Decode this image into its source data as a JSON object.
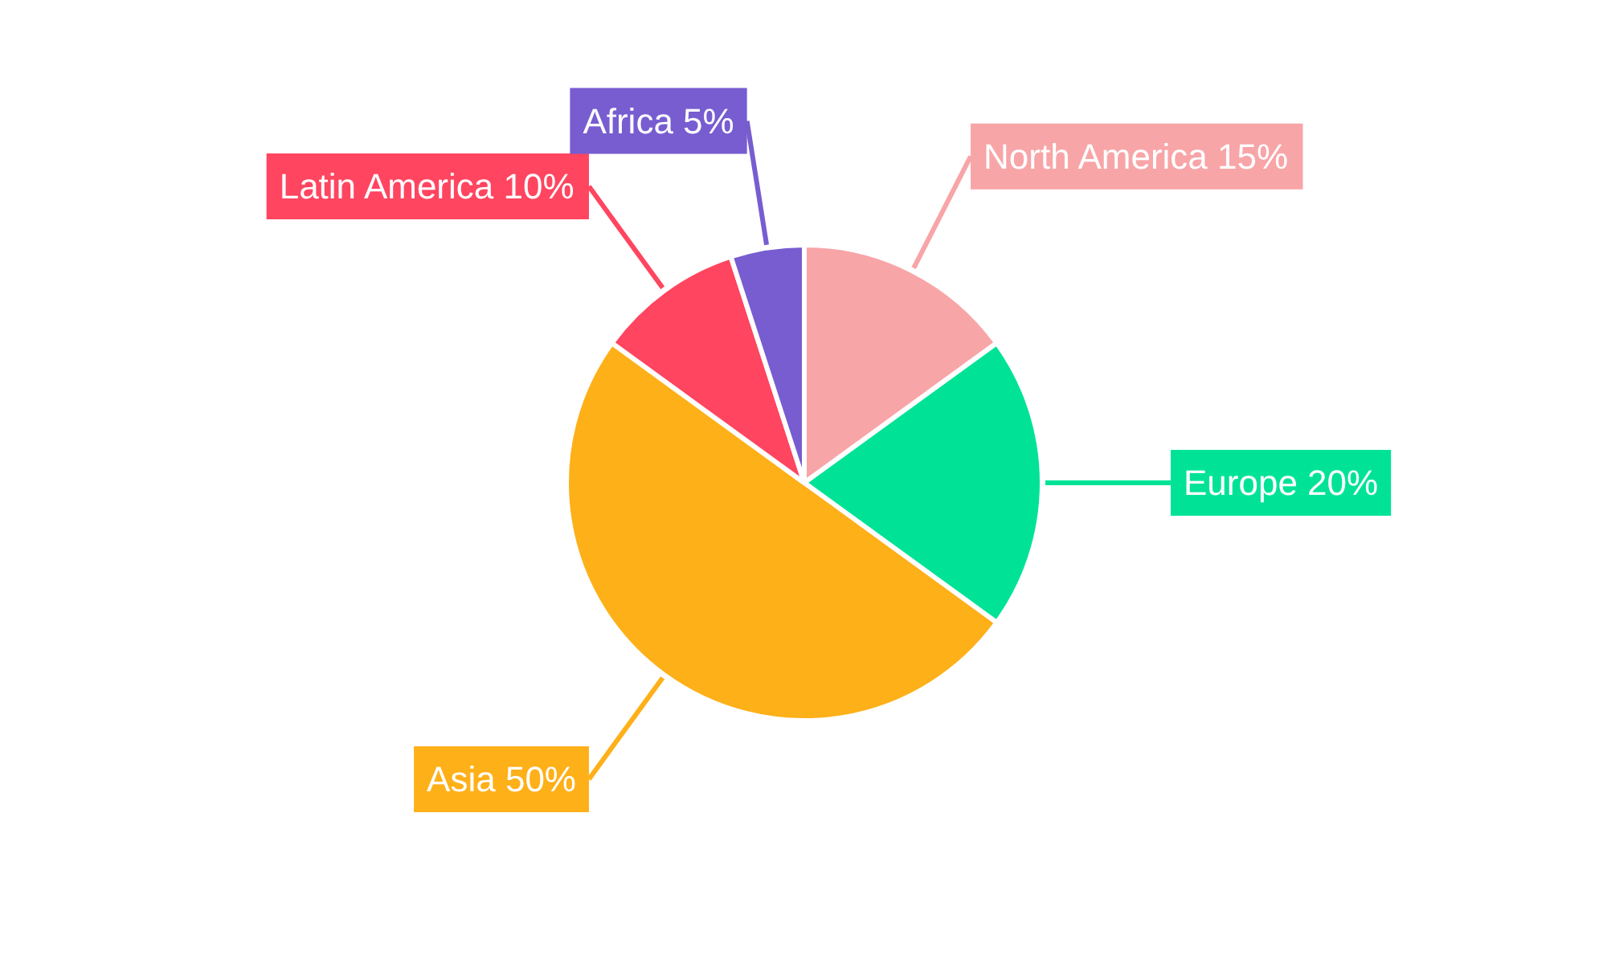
{
  "chart_data": {
    "type": "pie",
    "categories": [
      "North America",
      "Europe",
      "Asia",
      "Latin America",
      "Africa"
    ],
    "values": [
      15,
      20,
      50,
      10,
      5
    ],
    "colors": [
      "#f8a5a8",
      "#00e396",
      "#feb019",
      "#ff4560",
      "#775dd0"
    ],
    "value_labels": [
      "15%",
      "20%",
      "50%",
      "10%",
      "5%"
    ]
  }
}
